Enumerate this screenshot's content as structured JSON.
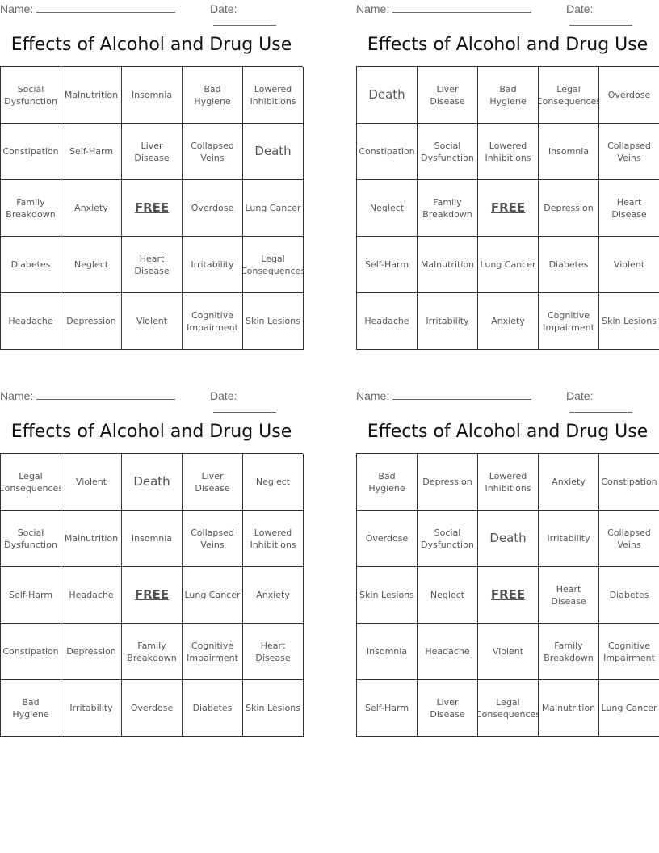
{
  "header": {
    "name_label": "Name:",
    "date_label": "Date:"
  },
  "cards": [
    {
      "title": "Effects of Alcohol and Drug Use",
      "cells": [
        "Social Dysfunction",
        "Malnutrition",
        "Insomnia",
        "Bad Hygiene",
        "Lowered Inhibitions",
        "Constipation",
        "Self-Harm",
        "Liver Disease",
        "Collapsed Veins",
        "Death",
        "Family Breakdown",
        "Anxiety",
        "FREE",
        "Overdose",
        "Lung Cancer",
        "Diabetes",
        "Neglect",
        "Heart Disease",
        "Irritability",
        "Legal Consequences",
        "Headache",
        "Depression",
        "Violent",
        "Cognitive Impairment",
        "Skin Lesions"
      ]
    },
    {
      "title": "Effects of Alcohol and Drug Use",
      "cells": [
        "Death",
        "Liver Disease",
        "Bad Hygiene",
        "Legal Consequences",
        "Overdose",
        "Constipation",
        "Social Dysfunction",
        "Lowered Inhibitions",
        "Insomnia",
        "Collapsed Veins",
        "Neglect",
        "Family Breakdown",
        "FREE",
        "Depression",
        "Heart Disease",
        "Self-Harm",
        "Malnutrition",
        "Lung Cancer",
        "Diabetes",
        "Violent",
        "Headache",
        "Irritability",
        "Anxiety",
        "Cognitive Impairment",
        "Skin Lesions"
      ]
    },
    {
      "title": "Effects of Alcohol and Drug Use",
      "cells": [
        "Legal Consequences",
        "Violent",
        "Death",
        "Liver Disease",
        "Neglect",
        "Social Dysfunction",
        "Malnutrition",
        "Insomnia",
        "Collapsed Veins",
        "Lowered Inhibitions",
        "Self-Harm",
        "Headache",
        "FREE",
        "Lung Cancer",
        "Anxiety",
        "Constipation",
        "Depression",
        "Family Breakdown",
        "Cognitive Impairment",
        "Heart Disease",
        "Bad Hygiene",
        "Irritability",
        "Overdose",
        "Diabetes",
        "Skin Lesions"
      ]
    },
    {
      "title": "Effects of Alcohol and Drug Use",
      "cells": [
        "Bad Hygiene",
        "Depression",
        "Lowered Inhibitions",
        "Anxiety",
        "Constipation",
        "Overdose",
        "Social Dysfunction",
        "Death",
        "Irritability",
        "Collapsed Veins",
        "Skin Lesions",
        "Neglect",
        "FREE",
        "Heart Disease",
        "Diabetes",
        "Insomnia",
        "Headache",
        "Violent",
        "Family Breakdown",
        "Cognitive Impairment",
        "Self-Harm",
        "Liver Disease",
        "Legal Consequences",
        "Malnutrition",
        "Lung Cancer"
      ]
    }
  ]
}
